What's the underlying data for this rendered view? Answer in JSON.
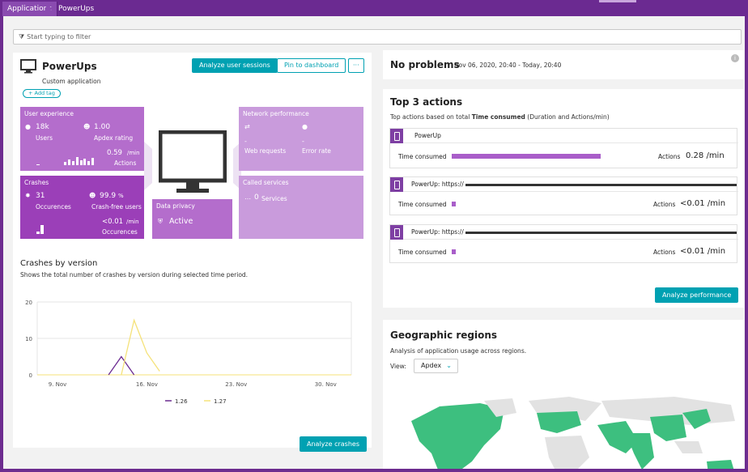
{
  "breadcrumb": {
    "root": "Applications",
    "current": "PowerUps"
  },
  "filter": {
    "placeholder": "Start typing to filter"
  },
  "app": {
    "name": "PowerUps",
    "type": "Custom application",
    "add_tag": "+ Add tag",
    "buttons": {
      "analyze_sessions": "Analyze user sessions",
      "pin": "Pin to dashboard",
      "more": "···"
    }
  },
  "tiles": {
    "user_experience": {
      "title": "User experience",
      "users_value": "18k",
      "users_label": "Users",
      "apdex_value": "1.00",
      "apdex_label": "Apdex rating",
      "actions_value": "0.59",
      "actions_unit": "/min",
      "actions_label": "Actions"
    },
    "crashes": {
      "title": "Crashes",
      "occ_value": "31",
      "occ_label": "Occurences",
      "free_value": "99.9",
      "free_unit": "%",
      "free_label": "Crash-free users",
      "rate_value": "<0.01",
      "rate_unit": "/min",
      "rate_label": "Occurences"
    },
    "data_privacy": {
      "title": "Data privacy",
      "status": "Active"
    },
    "network": {
      "title": "Network performance",
      "web_value": "-",
      "web_label": "Web requests",
      "err_value": "-",
      "err_label": "Error rate"
    },
    "called": {
      "title": "Called services",
      "value": "0",
      "label": "Services"
    }
  },
  "crashes_chart": {
    "title": "Crashes by version",
    "subtitle": "Shows the total number of crashes by version during selected time period.",
    "analyze_button": "Analyze crashes"
  },
  "chart_data": {
    "type": "line",
    "title": "Crashes by version",
    "x_ticks": [
      "9. Nov",
      "16. Nov",
      "23. Nov",
      "30. Nov"
    ],
    "y_ticks": [
      "0",
      "10",
      "20"
    ],
    "ylim": [
      0,
      20
    ],
    "series": [
      {
        "name": "1.26",
        "color": "#6b2a91",
        "x": [
          "13. Nov",
          "14. Nov",
          "15. Nov"
        ],
        "values": [
          0,
          5,
          0
        ]
      },
      {
        "name": "1.27",
        "color": "#f5e27a",
        "x": [
          "14. Nov",
          "15. Nov",
          "16. Nov",
          "17. Nov"
        ],
        "values": [
          0,
          15,
          6,
          1
        ]
      }
    ],
    "legend": "bottom"
  },
  "problems": {
    "title": "No problems",
    "range": "Nov 06, 2020, 20:40 - Today, 20:40",
    "info_icon": "info-icon"
  },
  "top_actions": {
    "title": "Top 3 actions",
    "subtitle_pre": "Top actions based on total ",
    "subtitle_bold": "Time consumed",
    "subtitle_post": " (Duration and Actions/min)",
    "rows": [
      {
        "name": "PowerUp",
        "metric_label": "Time consumed",
        "actions_label": "Actions",
        "actions_value": "0.28 /min",
        "fill": 0.8
      },
      {
        "name": "PowerUp: https://",
        "metric_label": "Time consumed",
        "actions_label": "Actions",
        "actions_value": "<0.01 /min",
        "fill": 0.02
      },
      {
        "name": "PowerUp: https://",
        "metric_label": "Time consumed",
        "actions_label": "Actions",
        "actions_value": "<0.01 /min",
        "fill": 0.02
      }
    ],
    "analyze_button": "Analyze performance"
  },
  "geo": {
    "title": "Geographic regions",
    "subtitle": "Analysis of application usage across regions.",
    "view_label": "View:",
    "view_value": "Apdex"
  },
  "colors": {
    "accent": "#00a1b2",
    "brand": "#6b2a91",
    "tile": "#b46dcc",
    "map_green": "#3dbf7f"
  }
}
